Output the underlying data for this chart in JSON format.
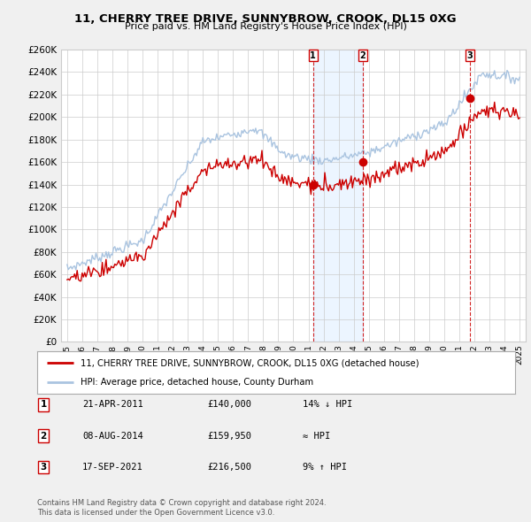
{
  "title": "11, CHERRY TREE DRIVE, SUNNYBROW, CROOK, DL15 0XG",
  "subtitle": "Price paid vs. HM Land Registry's House Price Index (HPI)",
  "legend_line1": "11, CHERRY TREE DRIVE, SUNNYBROW, CROOK, DL15 0XG (detached house)",
  "legend_line2": "HPI: Average price, detached house, County Durham",
  "footer_line1": "Contains HM Land Registry data © Crown copyright and database right 2024.",
  "footer_line2": "This data is licensed under the Open Government Licence v3.0.",
  "transactions": [
    {
      "num": 1,
      "date": "21-APR-2011",
      "price": "£140,000",
      "hpi_rel": "14% ↓ HPI",
      "x_year": 2011.3,
      "y_val": 140000
    },
    {
      "num": 2,
      "date": "08-AUG-2014",
      "price": "£159,950",
      "hpi_rel": "≈ HPI",
      "x_year": 2014.6,
      "y_val": 159950
    },
    {
      "num": 3,
      "date": "17-SEP-2021",
      "price": "£216,500",
      "hpi_rel": "9% ↑ HPI",
      "x_year": 2021.7,
      "y_val": 216500
    }
  ],
  "hpi_color": "#aac4e0",
  "price_color": "#cc0000",
  "shade_color": "#ddeeff",
  "vline_color": "#cc0000",
  "background_color": "#f0f0f0",
  "plot_bg_color": "#ffffff",
  "grid_color": "#cccccc",
  "ylim": [
    0,
    260000
  ],
  "yticks": [
    0,
    20000,
    40000,
    60000,
    80000,
    100000,
    120000,
    140000,
    160000,
    180000,
    200000,
    220000,
    240000,
    260000
  ],
  "xlim_start": 1994.6,
  "xlim_end": 2025.4,
  "xticks": [
    1995,
    1996,
    1997,
    1998,
    1999,
    2000,
    2001,
    2002,
    2003,
    2004,
    2005,
    2006,
    2007,
    2008,
    2009,
    2010,
    2011,
    2012,
    2013,
    2014,
    2015,
    2016,
    2017,
    2018,
    2019,
    2020,
    2021,
    2022,
    2023,
    2024,
    2025
  ]
}
